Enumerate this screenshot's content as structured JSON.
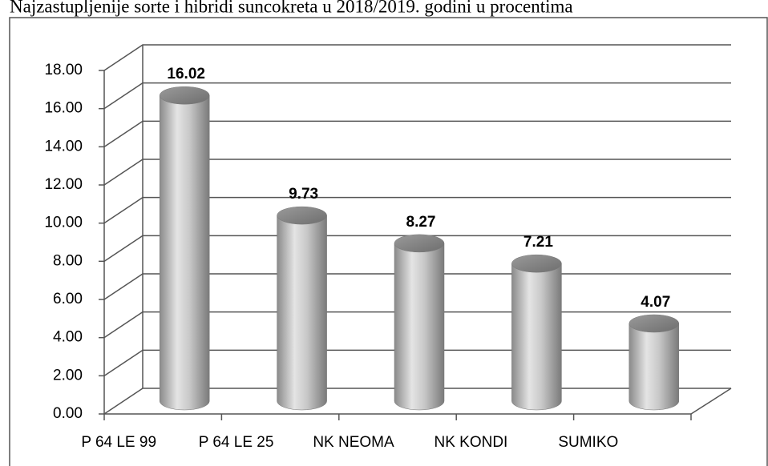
{
  "chart_data": {
    "type": "bar",
    "title": "Najzastupljenije sorte i hibridi suncokreta u 2018/2019. godini u procentima",
    "categories": [
      "P 64 LE 99",
      "P 64 LE 25",
      "NK NEOMA",
      "NK KONDI",
      "SUMIKO"
    ],
    "values": [
      16.02,
      9.73,
      8.27,
      7.21,
      4.07
    ],
    "color": "#b0b0b0",
    "ylim": [
      0,
      18
    ],
    "yticks": [
      {
        "value": 0,
        "label": "0.00"
      },
      {
        "value": 2,
        "label": "2.00"
      },
      {
        "value": 4,
        "label": "4.00"
      },
      {
        "value": 6,
        "label": "6.00"
      },
      {
        "value": 8,
        "label": "8.00"
      },
      {
        "value": 10,
        "label": "10.00"
      },
      {
        "value": 12,
        "label": "12.00"
      },
      {
        "value": 14,
        "label": "14.00"
      },
      {
        "value": 16,
        "label": "16.00"
      },
      {
        "value": 18,
        "label": "18.00"
      }
    ],
    "grid": true
  }
}
